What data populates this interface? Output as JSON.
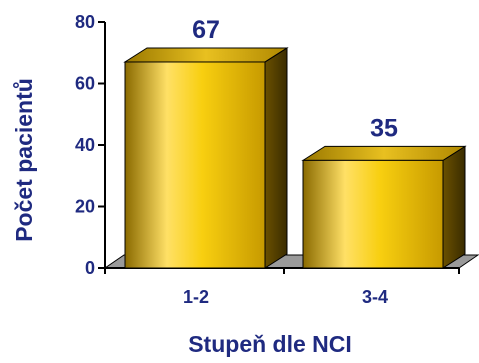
{
  "chart_data": {
    "type": "bar",
    "categories": [
      "1-2",
      "3-4"
    ],
    "values": [
      67,
      35
    ],
    "title": "",
    "xlabel": "Stupeň dle NCI",
    "ylabel": "Počet pacientů",
    "ylim": [
      0,
      80
    ],
    "yticks": [
      "0",
      "20",
      "40",
      "60",
      "80"
    ],
    "data_labels": [
      "67",
      "35"
    ],
    "grid": false,
    "legend": "none",
    "style": "3d-bar",
    "colors": {
      "bar_light": "#ffe066",
      "bar_mid": "#f0c000",
      "bar_dark": "#8a6a00",
      "floor": "#9a9a9a",
      "text": "#1f2a80"
    }
  }
}
